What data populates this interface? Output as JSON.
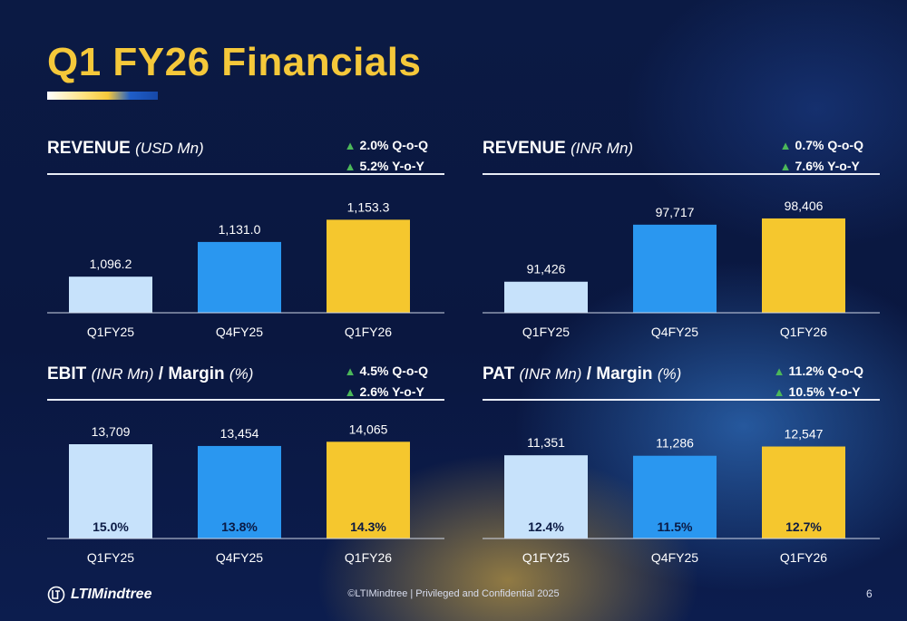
{
  "slide": {
    "title": "Q1 FY26 Financials",
    "footer_text": "©LTIMindtree | Privileged and Confidential 2025",
    "page_number": "6",
    "logo_text": "LTIMindtree"
  },
  "colors": {
    "bar_q1fy25": "#c7e2fb",
    "bar_q4fy25": "#2a97f0",
    "bar_q1fy26": "#f5c72e",
    "growth_arrow": "#4cb85a"
  },
  "panels": [
    {
      "title_main": "REVENUE",
      "title_unit": "(USD Mn)",
      "title_suffix": "",
      "title_suffix_unit": "",
      "growth": [
        "2.0% Q-o-Q",
        "5.2% Y-o-Y"
      ]
    },
    {
      "title_main": "REVENUE",
      "title_unit": "(INR Mn)",
      "title_suffix": "",
      "title_suffix_unit": "",
      "growth": [
        "0.7% Q-o-Q",
        "7.6% Y-o-Y"
      ]
    },
    {
      "title_main": "EBIT",
      "title_unit": "(INR Mn)",
      "title_suffix": "/ Margin",
      "title_suffix_unit": "(%)",
      "growth": [
        "4.5% Q-o-Q",
        "2.6% Y-o-Y"
      ]
    },
    {
      "title_main": "PAT",
      "title_unit": "(INR Mn)",
      "title_suffix": "/ Margin",
      "title_suffix_unit": "(%)",
      "growth": [
        "11.2% Q-o-Q",
        "10.5% Y-o-Y"
      ]
    }
  ],
  "chart_data": [
    {
      "type": "bar",
      "title": "REVENUE (USD Mn)",
      "categories": [
        "Q1FY25",
        "Q4FY25",
        "Q1FY26"
      ],
      "values": [
        1096.2,
        1131.0,
        1153.3
      ],
      "value_labels": [
        "1,096.2",
        "1,131.0",
        "1,153.3"
      ],
      "ylim": [
        1060,
        1160
      ]
    },
    {
      "type": "bar",
      "title": "REVENUE (INR Mn)",
      "categories": [
        "Q1FY25",
        "Q4FY25",
        "Q1FY26"
      ],
      "values": [
        91426,
        97717,
        98406
      ],
      "value_labels": [
        "91,426",
        "97,717",
        "98,406"
      ],
      "ylim": [
        88000,
        99000
      ]
    },
    {
      "type": "bar",
      "title": "EBIT (INR Mn) / Margin (%)",
      "categories": [
        "Q1FY25",
        "Q4FY25",
        "Q1FY26"
      ],
      "values": [
        13709,
        13454,
        14065
      ],
      "value_labels": [
        "13,709",
        "13,454",
        "14,065"
      ],
      "margins": [
        "15.0%",
        "13.8%",
        "14.3%"
      ],
      "ylim": [
        0,
        14500
      ]
    },
    {
      "type": "bar",
      "title": "PAT (INR Mn) / Margin (%)",
      "categories": [
        "Q1FY25",
        "Q4FY25",
        "Q1FY26"
      ],
      "values": [
        11351,
        11286,
        12547
      ],
      "value_labels": [
        "11,351",
        "11,286",
        "12,547"
      ],
      "margins": [
        "12.4%",
        "11.5%",
        "12.7%"
      ],
      "ylim": [
        0,
        13600
      ]
    }
  ]
}
